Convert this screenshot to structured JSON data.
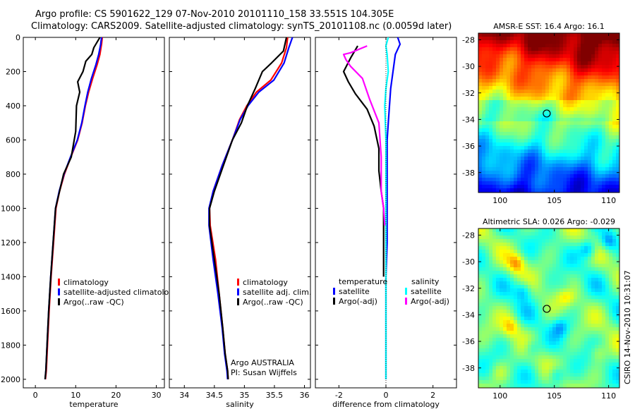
{
  "header": {
    "line1": "Argo profile: CS 5901622_129 07-Nov-2010 20101110_158 33.551S 104.305E",
    "line2": "Climatology: CARS2009. Satellite-adjusted climatology: synTS_20101108.nc (0.0059d later)"
  },
  "colors": {
    "climatology": "#ff0000",
    "satellite": "#0000ff",
    "argo": "#000000",
    "sal_satellite": "#00ffff",
    "sal_argo": "#ff00ff"
  },
  "chart_data": [
    {
      "type": "line",
      "name": "temperature-profile",
      "xlabel": "temperature",
      "xlim": [
        -3,
        32
      ],
      "ylim": [
        0,
        2050
      ],
      "xticks": [
        0,
        10,
        20,
        30
      ],
      "yticks": [
        0,
        200,
        400,
        600,
        800,
        1000,
        1200,
        1400,
        1600,
        1800,
        2000
      ],
      "legend": [
        "climatology",
        "satellite-adjusted climatology",
        "Argo(..raw -QC)"
      ],
      "series": [
        {
          "name": "climatology",
          "color": "climatology",
          "x": [
            16.6,
            16.4,
            16.0,
            15.3,
            14.2,
            13.2,
            12.4,
            11.6,
            10.5,
            8.8,
            7.2,
            6.0,
            5.1,
            4.5,
            3.9,
            3.4,
            3.0,
            2.7,
            2.5
          ],
          "y": [
            0,
            40,
            100,
            160,
            240,
            320,
            400,
            500,
            600,
            700,
            800,
            900,
            1000,
            1200,
            1400,
            1600,
            1800,
            1950,
            2000
          ]
        },
        {
          "name": "satellite",
          "color": "satellite",
          "x": [
            16.4,
            16.2,
            15.7,
            15.0,
            13.9,
            13.0,
            12.3,
            11.5,
            10.4,
            8.7,
            7.1,
            5.9,
            5.0,
            4.4,
            3.8,
            3.3,
            2.9,
            2.6,
            2.4
          ],
          "y": [
            0,
            40,
            100,
            160,
            240,
            320,
            400,
            500,
            600,
            700,
            800,
            900,
            1000,
            1200,
            1400,
            1600,
            1800,
            1950,
            2000
          ]
        },
        {
          "name": "argo",
          "color": "argo",
          "x": [
            16.0,
            14.5,
            14.0,
            12.5,
            11.8,
            10.5,
            11.0,
            10.2,
            10.0,
            8.9,
            7.0,
            6.0,
            5.0,
            4.4,
            3.8,
            3.3,
            2.9,
            2.6,
            2.4
          ],
          "y": [
            0,
            60,
            100,
            140,
            200,
            260,
            320,
            400,
            550,
            700,
            800,
            900,
            1000,
            1200,
            1400,
            1600,
            1800,
            1950,
            2000
          ]
        }
      ]
    },
    {
      "type": "line",
      "name": "salinity-profile",
      "xlabel": "salinity",
      "xlim": [
        33.75,
        36.1
      ],
      "ylim": [
        0,
        2050
      ],
      "xticks": [
        34,
        34.5,
        35,
        35.5,
        36
      ],
      "yticks": [
        0,
        200,
        400,
        600,
        800,
        1000,
        1200,
        1400,
        1600,
        1800,
        2000
      ],
      "legend": [
        "climatology",
        "satellite adj. clim.",
        "Argo(..raw -QC)"
      ],
      "annotation": [
        "Argo AUSTRALIA",
        "PI: Susan Wijffels"
      ],
      "series": [
        {
          "name": "climatology",
          "color": "climatology",
          "x": [
            35.72,
            35.7,
            35.62,
            35.44,
            35.2,
            35.04,
            34.92,
            34.8,
            34.63,
            34.48,
            34.42,
            34.43,
            34.52,
            34.58,
            34.64,
            34.68,
            34.72,
            34.73
          ],
          "y": [
            0,
            60,
            150,
            250,
            320,
            400,
            480,
            600,
            750,
            900,
            1000,
            1100,
            1300,
            1500,
            1700,
            1850,
            1950,
            2000
          ]
        },
        {
          "name": "satellite",
          "color": "satellite",
          "x": [
            35.8,
            35.74,
            35.66,
            35.49,
            35.24,
            35.06,
            34.93,
            34.8,
            34.63,
            34.48,
            34.41,
            34.41,
            34.48,
            34.56,
            34.63,
            34.67,
            34.71,
            34.72
          ],
          "y": [
            0,
            60,
            150,
            250,
            320,
            400,
            480,
            600,
            750,
            900,
            1000,
            1100,
            1300,
            1500,
            1700,
            1850,
            1950,
            2000
          ]
        },
        {
          "name": "argo",
          "color": "argo",
          "x": [
            35.7,
            35.65,
            35.45,
            35.3,
            35.18,
            35.05,
            34.95,
            34.8,
            34.65,
            34.5,
            34.42,
            34.42,
            34.5,
            34.58,
            34.64,
            34.68,
            34.72,
            34.73
          ],
          "y": [
            0,
            80,
            150,
            200,
            300,
            400,
            500,
            600,
            750,
            900,
            1000,
            1100,
            1300,
            1500,
            1700,
            1850,
            1950,
            2000
          ]
        }
      ]
    },
    {
      "type": "line",
      "name": "difference-profile",
      "xlabel": "difference from climatology",
      "xlim": [
        -3,
        3
      ],
      "ylim": [
        0,
        2050
      ],
      "xticks": [
        -2,
        0,
        2
      ],
      "yticks": [
        0,
        200,
        400,
        600,
        800,
        1000,
        1200,
        1400,
        1600,
        1800,
        2000
      ],
      "legend": {
        "temperature_title": "temperature",
        "salinity_title": "salinity",
        "temperature_items": [
          "satellite",
          "Argo(-adj)"
        ],
        "salinity_items": [
          "satellite",
          "Argo(-adj)"
        ]
      },
      "series": [
        {
          "name": "temp-satellite",
          "color": "satellite",
          "x": [
            0.5,
            0.6,
            0.4,
            0.3,
            0.2,
            0.15,
            0.1,
            0.05,
            0.05,
            0.05,
            0.05,
            0.0,
            0.0,
            0.0
          ],
          "y": [
            0,
            40,
            100,
            200,
            300,
            400,
            500,
            600,
            800,
            1000,
            1200,
            1400,
            1700,
            2000
          ]
        },
        {
          "name": "sal-satellite",
          "color": "sal_satellite",
          "x": [
            0.1,
            0.0,
            0.05,
            0.1,
            0.0,
            -0.05,
            0.0,
            0.0,
            0.0,
            0.0,
            0.0,
            0.0
          ],
          "y": [
            0,
            50,
            100,
            200,
            300,
            400,
            600,
            800,
            1000,
            1400,
            1800,
            2000
          ]
        },
        {
          "name": "temp-argo",
          "color": "argo",
          "x": [
            -1.2,
            -1.5,
            -1.8,
            -1.6,
            -1.3,
            -0.8,
            -0.5,
            -0.3,
            -0.3,
            -0.2,
            -0.1,
            -0.1
          ],
          "y": [
            50,
            120,
            200,
            260,
            330,
            420,
            520,
            650,
            780,
            900,
            1000,
            1400
          ]
        },
        {
          "name": "sal-argo",
          "color": "sal_argo",
          "x": [
            -0.8,
            -1.5,
            -1.8,
            -1.7,
            -1.5,
            -1.0,
            -0.7,
            -0.3,
            -0.2,
            -0.2,
            -0.1,
            -0.05
          ],
          "y": [
            50,
            90,
            100,
            130,
            170,
            240,
            360,
            500,
            700,
            900,
            1000,
            1100
          ]
        }
      ]
    },
    {
      "type": "heatmap",
      "name": "sst-map",
      "title": "AMSR-E SST: 16.4 Argo: 16.1",
      "xlim": [
        98,
        111
      ],
      "ylim": [
        -39.5,
        -27.5
      ],
      "xticks": [
        100,
        105,
        110
      ],
      "yticks": [
        -28,
        -30,
        -32,
        -34,
        -36,
        -38
      ],
      "marker": {
        "lon": 104.3,
        "lat": -33.55
      }
    },
    {
      "type": "heatmap",
      "name": "sla-map",
      "title": "Altimetric SLA: 0.026 Argo: -0.029",
      "xlim": [
        98,
        111
      ],
      "ylim": [
        -39.5,
        -27.5
      ],
      "xticks": [
        100,
        105,
        110
      ],
      "yticks": [
        -28,
        -30,
        -32,
        -34,
        -36,
        -38
      ],
      "marker": {
        "lon": 104.3,
        "lat": -33.55
      }
    }
  ],
  "footer": {
    "stamp": "CSIRO 14-Nov-2010 10:31:07"
  }
}
